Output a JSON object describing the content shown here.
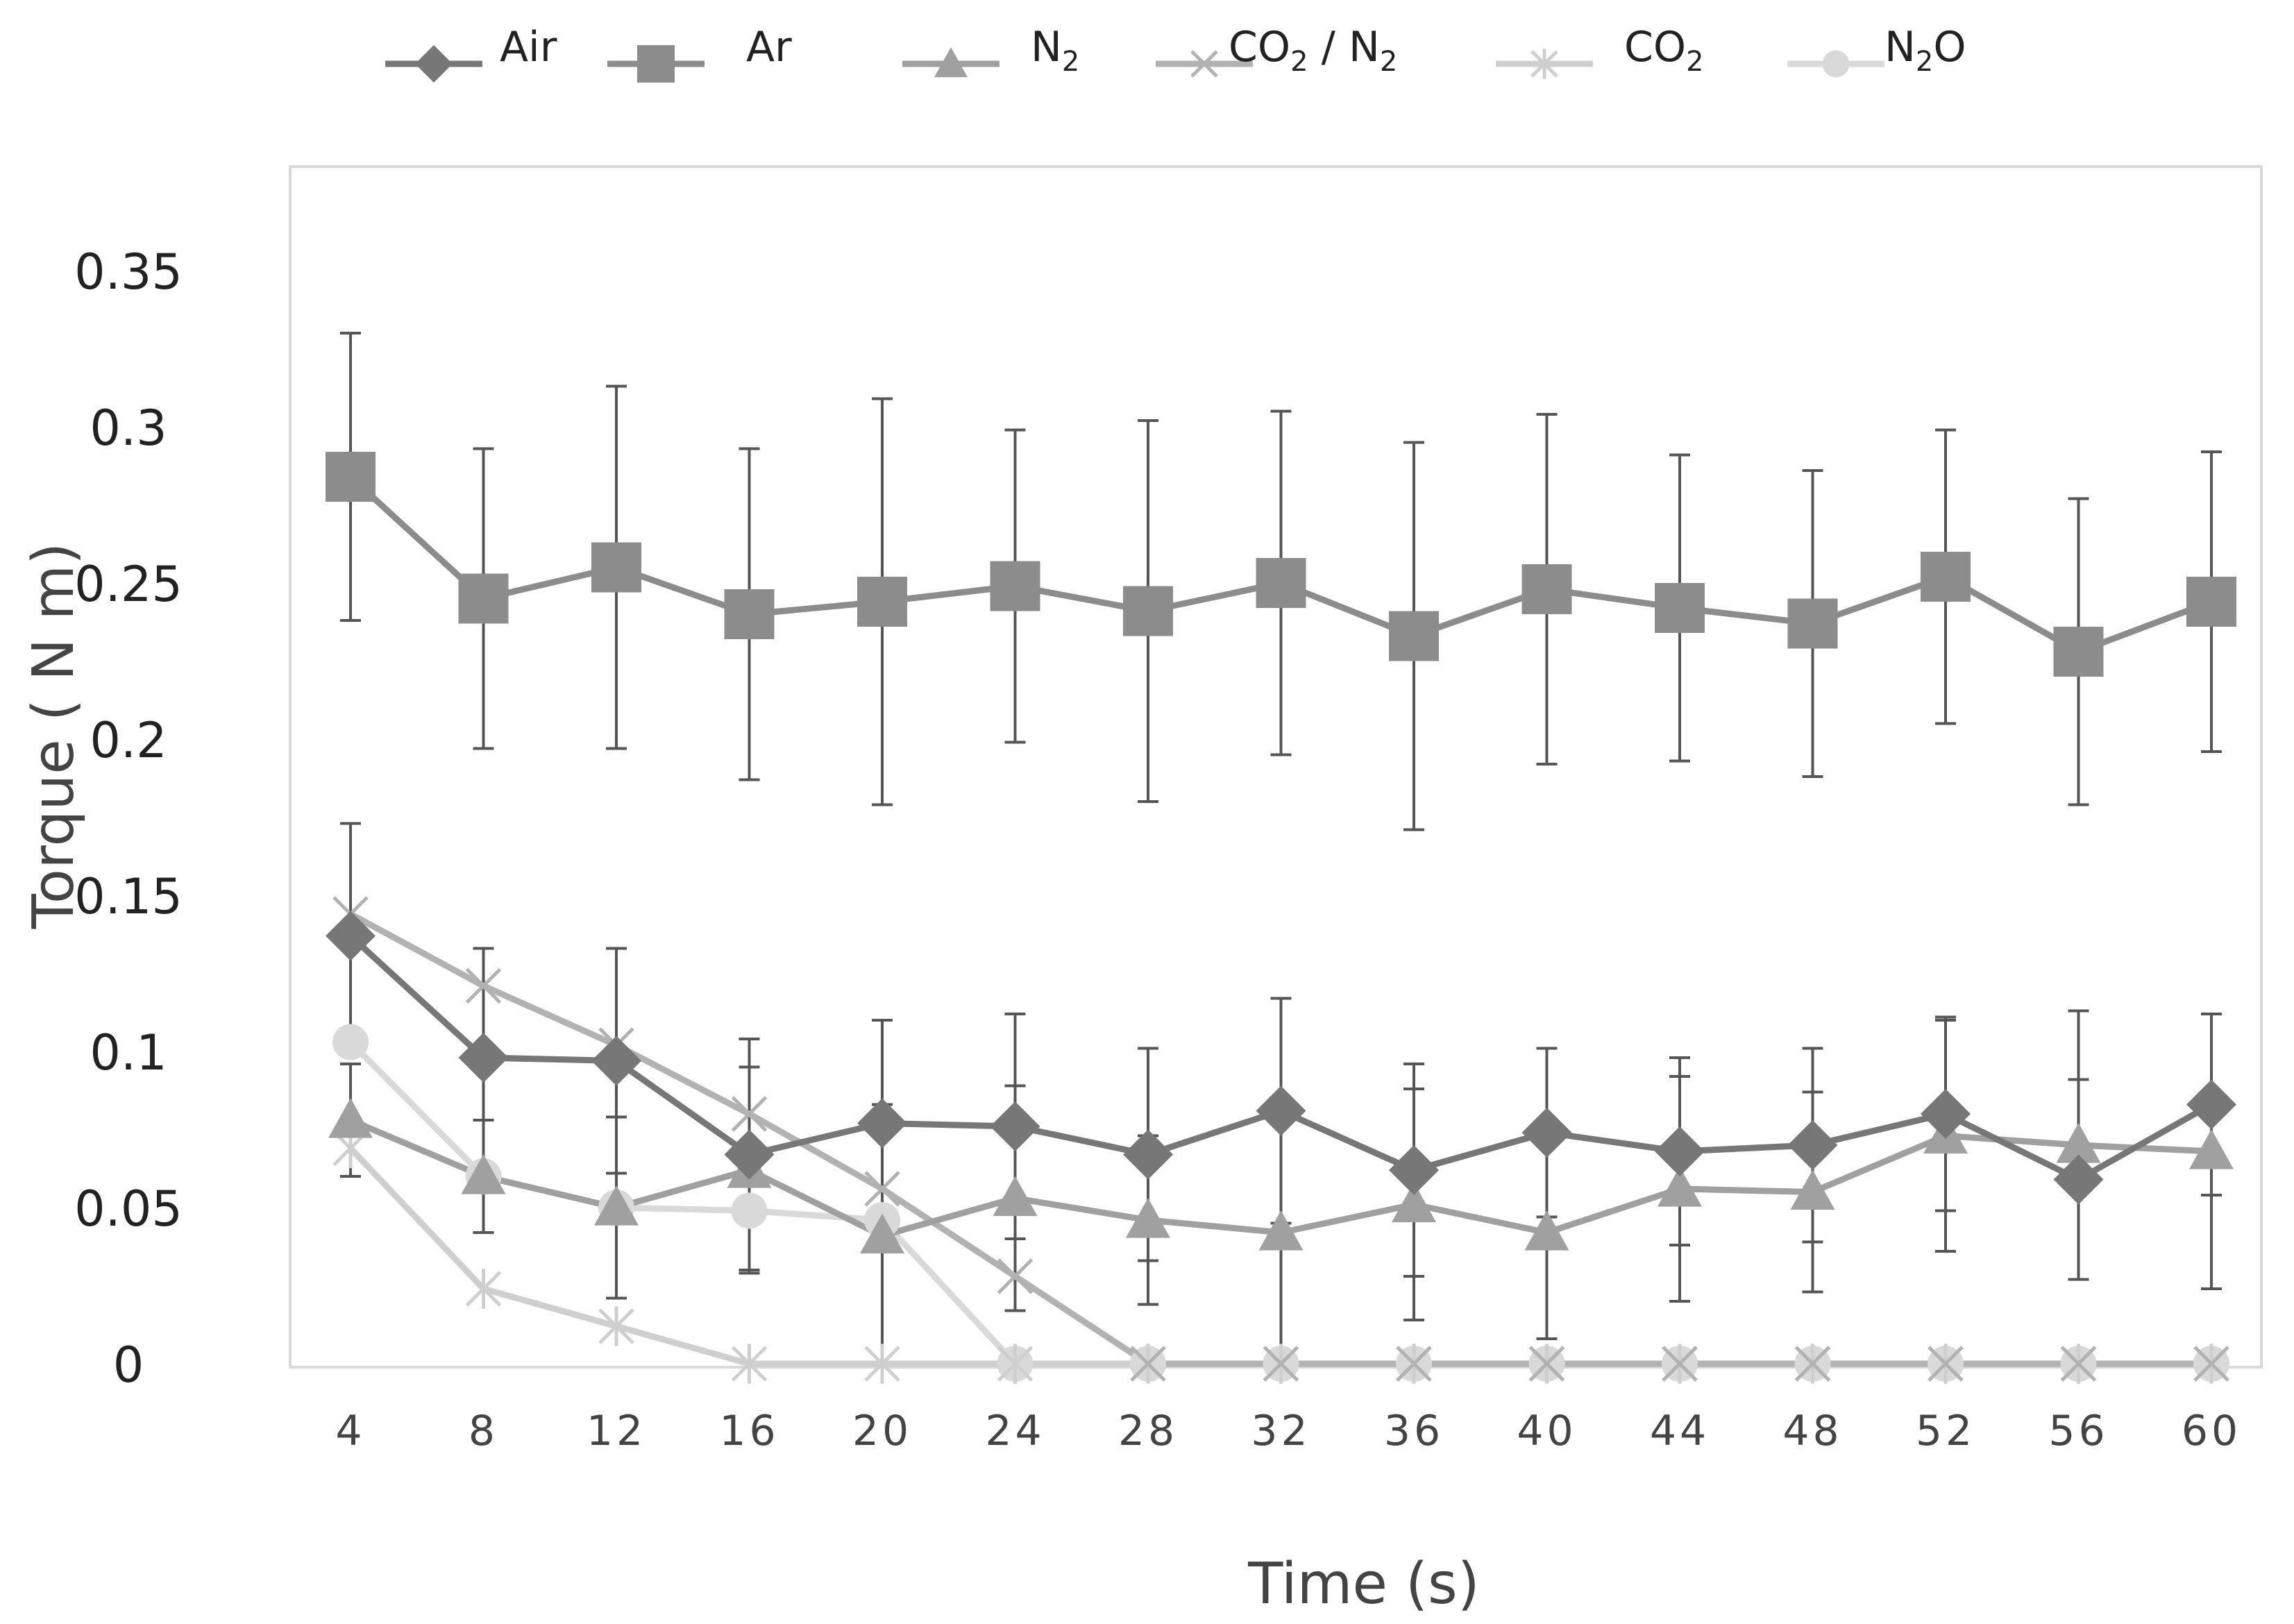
{
  "chart_data": {
    "type": "line",
    "title": "",
    "xlabel": "Time (s)",
    "ylabel": "Torque ( N m)",
    "x": [
      4,
      8,
      12,
      16,
      20,
      24,
      28,
      32,
      36,
      40,
      44,
      48,
      52,
      56,
      60
    ],
    "x_tick_labels": [
      "4",
      "8",
      "12",
      "16",
      "20",
      "24",
      "28",
      "32",
      "36",
      "40",
      "44",
      "48",
      "52",
      "56",
      "60"
    ],
    "ylim": [
      0,
      0.35
    ],
    "y_tick_labels": [
      "0",
      "0.05",
      "0.1",
      "0.15",
      "0.2",
      "0.25",
      "0.3",
      "0.35"
    ],
    "y_ticks": [
      0,
      0.05,
      0.1,
      0.15,
      0.2,
      0.25,
      0.3,
      0.35
    ],
    "grid": false,
    "legend_position": "top",
    "series": [
      {
        "name": "Air",
        "name_parts": [
          "Air"
        ],
        "marker": "diamond",
        "color": "#777777",
        "values": [
          0.137,
          0.098,
          0.097,
          0.067,
          0.077,
          0.076,
          0.067,
          0.081,
          0.062,
          0.074,
          0.068,
          0.07,
          0.08,
          0.059,
          0.083
        ],
        "error": [
          0.036,
          0.035,
          0.036,
          0.037,
          0.033,
          0.036,
          0.034,
          0.036,
          0.034,
          0.027,
          0.03,
          0.031,
          0.031,
          0.032,
          0.029
        ]
      },
      {
        "name": "Ar",
        "name_parts": [
          "Ar"
        ],
        "marker": "square",
        "color": "#8c8c8c",
        "values": [
          0.284,
          0.245,
          0.255,
          0.24,
          0.244,
          0.249,
          0.241,
          0.25,
          0.233,
          0.248,
          0.242,
          0.237,
          0.252,
          0.228,
          0.244
        ],
        "error": [
          0.046,
          0.048,
          0.058,
          0.053,
          0.065,
          0.05,
          0.061,
          0.055,
          0.062,
          0.056,
          0.049,
          0.049,
          0.047,
          0.049,
          0.048
        ]
      },
      {
        "name": "N2",
        "name_parts": [
          "N",
          "2",
          ""
        ],
        "marker": "triangle",
        "color": "#a0a0a0",
        "values": [
          0.078,
          0.06,
          0.05,
          0.062,
          0.041,
          0.053,
          0.046,
          0.042,
          0.051,
          0.042,
          0.056,
          0.055,
          0.073,
          0.07,
          0.068
        ],
        "error": [
          0.018,
          0.018,
          0.029,
          0.033,
          0.042,
          0.036,
          0.027,
          0.043,
          0.037,
          0.034,
          0.036,
          0.032,
          0.037,
          0.043,
          0.044
        ]
      },
      {
        "name": "CO2 / N2",
        "name_parts": [
          "CO",
          "2",
          " / N",
          "2",
          ""
        ],
        "marker": "x",
        "color": "#b2b2b2",
        "values": [
          0.144,
          0.121,
          0.102,
          0.08,
          0.056,
          0.028,
          0,
          0,
          0,
          0,
          0,
          0,
          0,
          0,
          0
        ]
      },
      {
        "name": "CO2",
        "name_parts": [
          "CO",
          "2",
          ""
        ],
        "marker": "star",
        "color": "#cfcfcf",
        "values": [
          0.069,
          0.024,
          0.012,
          0,
          0,
          0,
          0,
          0,
          0,
          0,
          0,
          0,
          0,
          0,
          0
        ]
      },
      {
        "name": "N2O",
        "name_parts": [
          "N",
          "2",
          "O"
        ],
        "marker": "circle",
        "color": "#d9d9d9",
        "values": [
          0.103,
          0.06,
          0.05,
          0.049,
          0.046,
          0,
          0,
          0,
          0,
          0,
          0,
          0,
          0,
          0,
          0
        ]
      }
    ]
  }
}
